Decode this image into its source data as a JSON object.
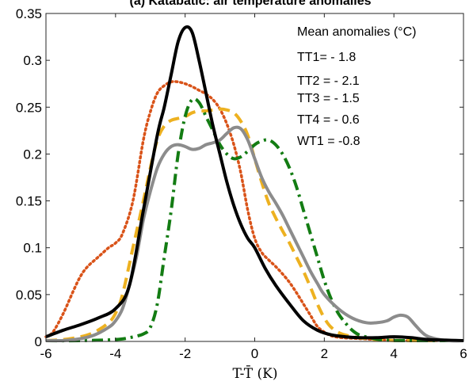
{
  "chart_data": {
    "type": "line",
    "title": "(a) Katabatic: air temperature anomalies",
    "xlabel": "T-T̄ (K)",
    "ylabel": "",
    "xlim": [
      -6,
      6
    ],
    "ylim": [
      0,
      0.35
    ],
    "xticks": [
      -6,
      -4,
      -2,
      0,
      2,
      4,
      6
    ],
    "yticks": [
      0,
      0.05,
      0.1,
      0.15,
      0.2,
      0.25,
      0.3,
      0.35
    ],
    "xtick_labels": [
      "-6",
      "-4",
      "-2",
      "0",
      "2",
      "4",
      "6"
    ],
    "ytick_labels": [
      "0",
      "0.05",
      "0.1",
      "0.15",
      "0.2",
      "0.25",
      "0.3",
      "0.35"
    ],
    "grid": false,
    "annotation": {
      "heading": "Mean anomalies (°C)",
      "lines": [
        "TT1= - 1.8",
        "TT2 = - 2.1",
        "TT3 = - 1.5",
        "TT4 = - 0.6",
        "WT1 = -0.8"
      ]
    },
    "series": [
      {
        "id": "TT1",
        "color": "#000000",
        "style": "solid",
        "x": [
          -6,
          -5.5,
          -5,
          -4.5,
          -4,
          -3.6,
          -3.2,
          -2.8,
          -2.6,
          -2.4,
          -2.2,
          -2.0,
          -1.8,
          -1.6,
          -1.4,
          -1.2,
          -1.0,
          -0.8,
          -0.6,
          -0.4,
          -0.2,
          0,
          0.3,
          0.6,
          1.0,
          1.4,
          1.8,
          2.2,
          2.6,
          3.0,
          3.5,
          4.0,
          4.5,
          5.0,
          6.0
        ],
        "y": [
          0.005,
          0.012,
          0.018,
          0.025,
          0.035,
          0.06,
          0.14,
          0.22,
          0.25,
          0.285,
          0.32,
          0.335,
          0.33,
          0.3,
          0.265,
          0.23,
          0.2,
          0.17,
          0.145,
          0.125,
          0.11,
          0.1,
          0.078,
          0.06,
          0.04,
          0.022,
          0.012,
          0.007,
          0.005,
          0.004,
          0.004,
          0.005,
          0.004,
          0.002,
          0.0
        ]
      },
      {
        "id": "TT2",
        "color": "#d95319",
        "style": "dotted",
        "x": [
          -6,
          -5.8,
          -5.5,
          -5.2,
          -5.0,
          -4.8,
          -4.5,
          -4.2,
          -4.0,
          -3.8,
          -3.5,
          -3.2,
          -3.0,
          -2.8,
          -2.6,
          -2.4,
          -2.2,
          -2.0,
          -1.8,
          -1.6,
          -1.4,
          -1.2,
          -1.0,
          -0.8,
          -0.6,
          -0.4,
          -0.2,
          0,
          0.2,
          0.4,
          0.6,
          0.8,
          1.0,
          1.2,
          1.4,
          1.6,
          1.8,
          2.0,
          2.2,
          2.5,
          3.0,
          3.5,
          4.0,
          5.0,
          6.0
        ],
        "y": [
          0.005,
          0.01,
          0.03,
          0.055,
          0.07,
          0.08,
          0.09,
          0.1,
          0.105,
          0.115,
          0.15,
          0.215,
          0.245,
          0.265,
          0.273,
          0.277,
          0.277,
          0.275,
          0.272,
          0.268,
          0.264,
          0.258,
          0.248,
          0.232,
          0.21,
          0.18,
          0.14,
          0.11,
          0.095,
          0.087,
          0.08,
          0.072,
          0.063,
          0.052,
          0.04,
          0.028,
          0.016,
          0.01,
          0.006,
          0.004,
          0.003,
          0.002,
          0.001,
          0.0,
          0.0
        ]
      },
      {
        "id": "TT3",
        "color": "#edb120",
        "style": "dashed",
        "x": [
          -6,
          -5.5,
          -5.0,
          -4.6,
          -4.2,
          -4.0,
          -3.8,
          -3.5,
          -3.2,
          -3.0,
          -2.8,
          -2.6,
          -2.4,
          -2.2,
          -2.0,
          -1.8,
          -1.6,
          -1.4,
          -1.2,
          -1.0,
          -0.8,
          -0.6,
          -0.4,
          -0.2,
          0,
          0.2,
          0.4,
          0.6,
          0.8,
          1.0,
          1.2,
          1.4,
          1.6,
          1.8,
          2.0,
          2.2,
          2.5,
          3.0,
          3.5,
          4.0,
          5.0,
          6.0
        ],
        "y": [
          0.0,
          0.002,
          0.005,
          0.01,
          0.02,
          0.03,
          0.05,
          0.1,
          0.15,
          0.185,
          0.215,
          0.23,
          0.236,
          0.238,
          0.24,
          0.244,
          0.246,
          0.246,
          0.247,
          0.248,
          0.247,
          0.244,
          0.235,
          0.22,
          0.195,
          0.17,
          0.148,
          0.132,
          0.118,
          0.105,
          0.09,
          0.075,
          0.058,
          0.04,
          0.025,
          0.015,
          0.008,
          0.004,
          0.002,
          0.001,
          0.0,
          0.0
        ]
      },
      {
        "id": "TT4",
        "color": "#137c13",
        "style": "dashdot",
        "x": [
          -6,
          -5.0,
          -4.0,
          -3.6,
          -3.2,
          -3.0,
          -2.8,
          -2.6,
          -2.4,
          -2.2,
          -2.0,
          -1.8,
          -1.6,
          -1.4,
          -1.2,
          -1.0,
          -0.8,
          -0.6,
          -0.4,
          -0.2,
          0,
          0.2,
          0.4,
          0.6,
          0.8,
          1.0,
          1.2,
          1.4,
          1.6,
          1.8,
          2.0,
          2.2,
          2.4,
          2.6,
          2.8,
          3.0,
          3.3,
          3.6,
          4.0,
          5.0,
          6.0
        ],
        "y": [
          0.0,
          0.0,
          0.002,
          0.004,
          0.008,
          0.015,
          0.04,
          0.09,
          0.14,
          0.2,
          0.24,
          0.258,
          0.255,
          0.24,
          0.225,
          0.21,
          0.2,
          0.195,
          0.197,
          0.203,
          0.21,
          0.214,
          0.215,
          0.21,
          0.2,
          0.185,
          0.165,
          0.14,
          0.115,
          0.09,
          0.065,
          0.045,
          0.03,
          0.02,
          0.012,
          0.007,
          0.004,
          0.002,
          0.001,
          0.0,
          0.0
        ]
      },
      {
        "id": "WT1",
        "color": "#8c8c8c",
        "style": "solid",
        "x": [
          -6,
          -5.5,
          -5.0,
          -4.6,
          -4.2,
          -4.0,
          -3.8,
          -3.6,
          -3.4,
          -3.2,
          -3.0,
          -2.8,
          -2.6,
          -2.4,
          -2.2,
          -2.0,
          -1.8,
          -1.6,
          -1.4,
          -1.2,
          -1.0,
          -0.8,
          -0.6,
          -0.4,
          -0.2,
          0,
          0.2,
          0.4,
          0.6,
          0.8,
          1.0,
          1.2,
          1.4,
          1.6,
          1.8,
          2.0,
          2.4,
          2.8,
          3.2,
          3.5,
          3.8,
          4.0,
          4.2,
          4.4,
          4.6,
          4.8,
          5.0,
          5.5,
          6.0
        ],
        "y": [
          0.0,
          0.001,
          0.003,
          0.007,
          0.015,
          0.022,
          0.035,
          0.06,
          0.09,
          0.13,
          0.16,
          0.185,
          0.2,
          0.208,
          0.21,
          0.208,
          0.205,
          0.206,
          0.21,
          0.212,
          0.215,
          0.222,
          0.228,
          0.227,
          0.215,
          0.195,
          0.175,
          0.16,
          0.148,
          0.135,
          0.12,
          0.105,
          0.09,
          0.075,
          0.062,
          0.05,
          0.035,
          0.025,
          0.02,
          0.02,
          0.022,
          0.026,
          0.028,
          0.026,
          0.018,
          0.01,
          0.005,
          0.001,
          0.0
        ]
      }
    ]
  }
}
